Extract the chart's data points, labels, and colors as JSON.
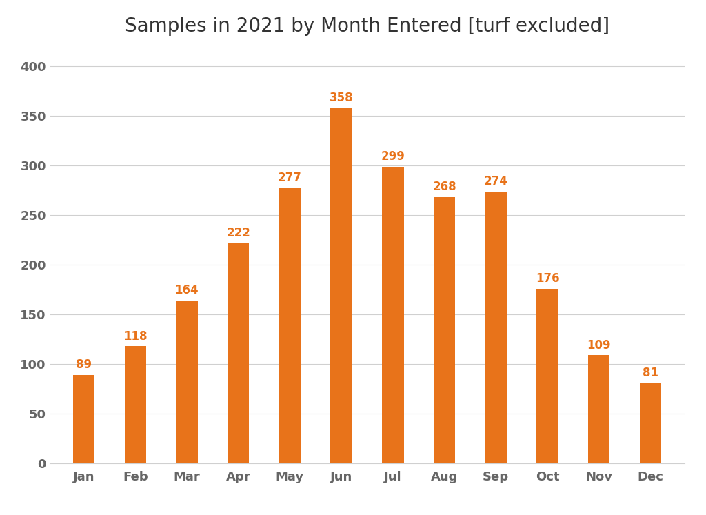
{
  "title": "Samples in 2021 by Month Entered [turf excluded]",
  "categories": [
    "Jan",
    "Feb",
    "Mar",
    "Apr",
    "May",
    "Jun",
    "Jul",
    "Aug",
    "Sep",
    "Oct",
    "Nov",
    "Dec"
  ],
  "values": [
    89,
    118,
    164,
    222,
    277,
    358,
    299,
    268,
    274,
    176,
    109,
    81
  ],
  "bar_color": "#E8731A",
  "label_color": "#E8731A",
  "title_fontsize": 20,
  "label_fontsize": 12,
  "tick_fontsize": 13,
  "ytick_fontsize": 13,
  "ylim": [
    0,
    420
  ],
  "yticks": [
    0,
    50,
    100,
    150,
    200,
    250,
    300,
    350,
    400
  ],
  "background_color": "#ffffff",
  "grid_color": "#d0d0d0",
  "bar_width": 0.42
}
